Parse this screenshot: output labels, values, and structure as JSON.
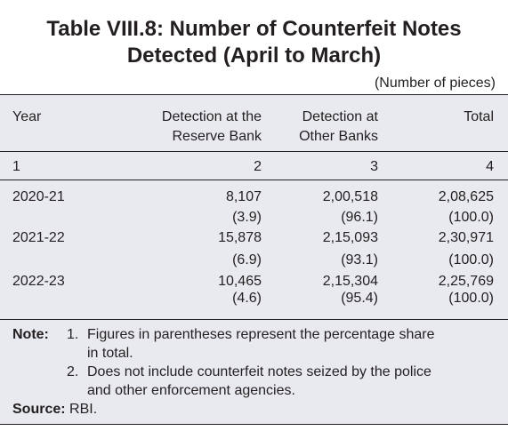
{
  "title": {
    "line1": "Table VIII.8: Number of Counterfeit Notes",
    "line2": "Detected (April to March)"
  },
  "units": "(Number of pieces)",
  "headers": {
    "year": "Year",
    "rbi_line1": "Detection at the",
    "rbi_line2": "Reserve Bank",
    "banks_line1": "Detection at",
    "banks_line2": "Other Banks",
    "total": "Total"
  },
  "column_numbers": [
    "1",
    "2",
    "3",
    "4"
  ],
  "rows": [
    {
      "year": "2020-21",
      "rbi": "8,107",
      "rbi_pct": "(3.9)",
      "banks": "2,00,518",
      "banks_pct": "(96.1)",
      "total": "2,08,625",
      "total_pct": "(100.0)"
    },
    {
      "year": "2021-22",
      "rbi": "15,878",
      "rbi_pct": "(6.9)",
      "banks": "2,15,093",
      "banks_pct": "(93.1)",
      "total": "2,30,971",
      "total_pct": "(100.0)"
    },
    {
      "year": "2022-23",
      "rbi": "10,465",
      "rbi_pct": "(4.6)",
      "banks": "2,15,304",
      "banks_pct": "(95.4)",
      "total": "2,25,769",
      "total_pct": "(100.0)"
    }
  ],
  "notes": {
    "label": "Note:",
    "item1_num": "1.",
    "item1_line1": "Figures in parentheses represent the percentage share",
    "item1_line2": "in total.",
    "item2_num": "2.",
    "item2_line1": "Does not include counterfeit notes seized by the police",
    "item2_line2": "and other enforcement agencies.",
    "source_label": "Source:",
    "source_value": "RBI."
  }
}
